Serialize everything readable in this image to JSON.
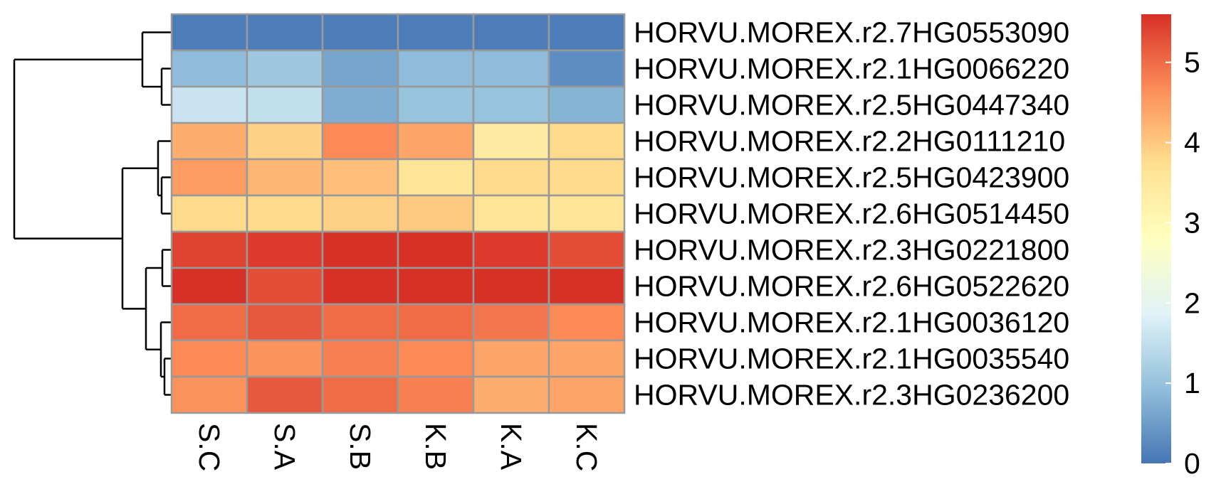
{
  "chart_data": {
    "type": "heatmap",
    "columns": [
      "S.C",
      "S.A",
      "S.B",
      "K.B",
      "K.A",
      "K.C"
    ],
    "rows": [
      "HORVU.MOREX.r2.7HG0553090",
      "HORVU.MOREX.r2.1HG0066220",
      "HORVU.MOREX.r2.5HG0447340",
      "HORVU.MOREX.r2.2HG0111210",
      "HORVU.MOREX.r2.5HG0423900",
      "HORVU.MOREX.r2.6HG0514450",
      "HORVU.MOREX.r2.3HG0221800",
      "HORVU.MOREX.r2.6HG0522620",
      "HORVU.MOREX.r2.1HG0036120",
      "HORVU.MOREX.r2.1HG0035540",
      "HORVU.MOREX.r2.3HG0236200"
    ],
    "values": [
      [
        0.1,
        0.1,
        0.1,
        0.1,
        0.1,
        0.1
      ],
      [
        0.9,
        1.1,
        0.6,
        0.9,
        0.9,
        0.3
      ],
      [
        1.6,
        1.5,
        0.7,
        1.0,
        1.0,
        0.8
      ],
      [
        4.3,
        3.9,
        4.7,
        4.4,
        3.4,
        3.8
      ],
      [
        4.5,
        4.2,
        4.1,
        3.6,
        3.8,
        3.8
      ],
      [
        3.8,
        3.8,
        3.9,
        4.0,
        3.6,
        3.6
      ],
      [
        5.4,
        5.5,
        5.8,
        5.6,
        5.5,
        5.3
      ],
      [
        5.6,
        5.3,
        5.6,
        5.8,
        5.6,
        5.8
      ],
      [
        5.0,
        5.2,
        5.0,
        5.0,
        4.9,
        4.7
      ],
      [
        4.7,
        4.6,
        4.8,
        4.7,
        4.4,
        4.4
      ],
      [
        4.6,
        5.2,
        5.0,
        4.8,
        4.3,
        4.4
      ]
    ],
    "colorbar": {
      "ticks": [
        0,
        1,
        2,
        3,
        4,
        5
      ],
      "range": [
        0,
        5.6
      ],
      "colors": [
        "#4575B4",
        "#91BFDB",
        "#E0F3F8",
        "#FFFFBF",
        "#FEE090",
        "#FC8D59",
        "#D73027"
      ]
    },
    "row_dendrogram": true,
    "cell_border_color": "#999999"
  }
}
